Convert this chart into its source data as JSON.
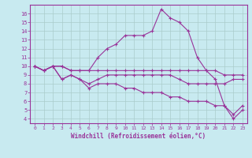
{
  "xlabel": "Windchill (Refroidissement éolien,°C)",
  "xlim": [
    -0.5,
    23.5
  ],
  "ylim": [
    3.5,
    17
  ],
  "yticks": [
    4,
    5,
    6,
    7,
    8,
    9,
    10,
    11,
    12,
    13,
    14,
    15,
    16
  ],
  "xticks": [
    0,
    1,
    2,
    3,
    4,
    5,
    6,
    7,
    8,
    9,
    10,
    11,
    12,
    13,
    14,
    15,
    16,
    17,
    18,
    19,
    20,
    21,
    22,
    23
  ],
  "bg_color": "#c8eaf0",
  "line_color": "#993399",
  "grid_color": "#aacccc",
  "series": [
    {
      "x": [
        0,
        1,
        2,
        3,
        4,
        5,
        6,
        7,
        8,
        9,
        10,
        11,
        12,
        13,
        14,
        15,
        16,
        17,
        18,
        19,
        20,
        21,
        22,
        23
      ],
      "y": [
        10,
        9.5,
        10,
        10,
        9.5,
        9.5,
        9.5,
        11,
        12,
        12.5,
        13.5,
        13.5,
        13.5,
        14,
        16.5,
        15.5,
        15,
        14,
        11,
        9.5,
        8.5,
        5.5,
        4,
        5
      ]
    },
    {
      "x": [
        0,
        1,
        2,
        3,
        4,
        5,
        6,
        7,
        8,
        9,
        10,
        11,
        12,
        13,
        14,
        15,
        16,
        17,
        18,
        19,
        20,
        21,
        22,
        23
      ],
      "y": [
        10,
        9.5,
        10,
        10,
        9.5,
        9.5,
        9.5,
        9.5,
        9.5,
        9.5,
        9.5,
        9.5,
        9.5,
        9.5,
        9.5,
        9.5,
        9.5,
        9.5,
        9.5,
        9.5,
        9.5,
        9.0,
        9.0,
        9.0
      ]
    },
    {
      "x": [
        0,
        1,
        2,
        3,
        4,
        5,
        6,
        7,
        8,
        9,
        10,
        11,
        12,
        13,
        14,
        15,
        16,
        17,
        18,
        19,
        20,
        21,
        22,
        23
      ],
      "y": [
        10,
        9.5,
        10,
        8.5,
        9,
        8.5,
        8.0,
        8.5,
        9.0,
        9.0,
        9.0,
        9.0,
        9.0,
        9.0,
        9.0,
        9.0,
        8.5,
        8.0,
        8.0,
        8.0,
        8.0,
        8.0,
        8.5,
        8.5
      ]
    },
    {
      "x": [
        0,
        1,
        2,
        3,
        4,
        5,
        6,
        7,
        8,
        9,
        10,
        11,
        12,
        13,
        14,
        15,
        16,
        17,
        18,
        19,
        20,
        21,
        22,
        23
      ],
      "y": [
        10,
        9.5,
        10,
        8.5,
        9.0,
        8.5,
        7.5,
        8.0,
        8.0,
        8.0,
        7.5,
        7.5,
        7.0,
        7.0,
        7.0,
        6.5,
        6.5,
        6.0,
        6.0,
        6.0,
        5.5,
        5.5,
        4.5,
        5.5
      ]
    }
  ]
}
